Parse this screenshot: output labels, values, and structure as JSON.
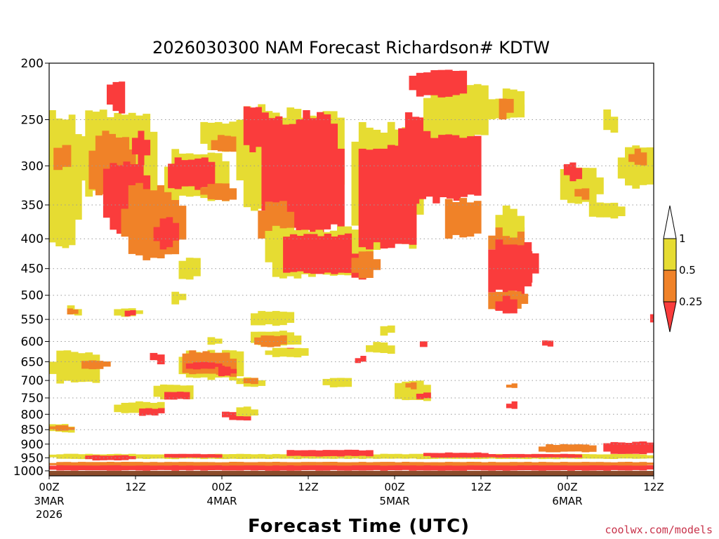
{
  "chart_data": {
    "type": "heatmap",
    "title": "2026030300 NAM Forecast Richardson# KDTW",
    "xlabel": "Forecast Time (UTC)",
    "ylabel": "",
    "credit": "coolwx.com/models",
    "x_unit": "forecast hour",
    "xlim": [
      0,
      84
    ],
    "y_unit": "hPa",
    "ylim": [
      1020,
      200
    ],
    "y_ticks": [
      {
        "value": 200,
        "label": "200"
      },
      {
        "value": 250,
        "label": "250"
      },
      {
        "value": 300,
        "label": "300"
      },
      {
        "value": 350,
        "label": "350"
      },
      {
        "value": 400,
        "label": "400"
      },
      {
        "value": 450,
        "label": "450"
      },
      {
        "value": 500,
        "label": "500"
      },
      {
        "value": 550,
        "label": "550"
      },
      {
        "value": 600,
        "label": "600"
      },
      {
        "value": 650,
        "label": "650"
      },
      {
        "value": 700,
        "label": "700"
      },
      {
        "value": 750,
        "label": "750"
      },
      {
        "value": 800,
        "label": "800"
      },
      {
        "value": 850,
        "label": "850"
      },
      {
        "value": 900,
        "label": "900"
      },
      {
        "value": 950,
        "label": "950"
      },
      {
        "value": 1000,
        "label": "1000"
      }
    ],
    "x_ticks": [
      {
        "hour": 0,
        "label": "00Z",
        "sub": "3MAR",
        "year": "2026"
      },
      {
        "hour": 12,
        "label": "12Z",
        "sub": "",
        "year": ""
      },
      {
        "hour": 24,
        "label": "00Z",
        "sub": "4MAR",
        "year": ""
      },
      {
        "hour": 36,
        "label": "12Z",
        "sub": "",
        "year": ""
      },
      {
        "hour": 48,
        "label": "00Z",
        "sub": "5MAR",
        "year": ""
      },
      {
        "hour": 60,
        "label": "12Z",
        "sub": "",
        "year": ""
      },
      {
        "hour": 72,
        "label": "00Z",
        "sub": "6MAR",
        "year": ""
      },
      {
        "hour": 84,
        "label": "12Z",
        "sub": "",
        "year": ""
      }
    ],
    "dotted_gridlines": true,
    "legend": {
      "placement": "right",
      "bins": [
        {
          "label": "1",
          "range": "> 1",
          "color": "#ffffff"
        },
        {
          "label": "0.5",
          "range": "0.5 – 1",
          "color": "#e6dc32"
        },
        {
          "label": "0.25",
          "range": "0.25 – 0.5",
          "color": "#f08228"
        },
        {
          "label": "",
          "range": "< 0.25",
          "color": "#fa3c3c"
        }
      ]
    },
    "colors": {
      "yellow": "#e6dc32",
      "orange": "#f08228",
      "red": "#fa3c3c",
      "ground": "#8b4c2b",
      "grid": "#9a9a9a"
    },
    "ground_top_hPa": 1000,
    "patches": [
      {
        "category": "yellow",
        "hour": [
          0,
          4.5
        ],
        "hPa": [
          240,
          420
        ]
      },
      {
        "category": "orange",
        "hour": [
          0.6,
          3
        ],
        "hPa": [
          275,
          305
        ]
      },
      {
        "category": "yellow",
        "hour": [
          0,
          7
        ],
        "hPa": [
          620,
          710
        ]
      },
      {
        "category": "orange",
        "hour": [
          4.5,
          8.5
        ],
        "hPa": [
          645,
          670
        ]
      },
      {
        "category": "yellow",
        "hour": [
          0,
          3.5
        ],
        "hPa": [
          830,
          860
        ]
      },
      {
        "category": "orange",
        "hour": [
          0,
          3.5
        ],
        "hPa": [
          835,
          855
        ]
      },
      {
        "category": "yellow",
        "hour": [
          4,
          15
        ],
        "hPa": [
          240,
          340
        ]
      },
      {
        "category": "orange",
        "hour": [
          5.5,
          12
        ],
        "hPa": [
          260,
          345
        ]
      },
      {
        "category": "red",
        "hour": [
          8,
          10.5
        ],
        "hPa": [
          215,
          245
        ]
      },
      {
        "category": "red",
        "hour": [
          7.5,
          14
        ],
        "hPa": [
          290,
          400
        ]
      },
      {
        "category": "orange",
        "hour": [
          10,
          19
        ],
        "hPa": [
          320,
          440
        ]
      },
      {
        "category": "red",
        "hour": [
          14.5,
          18
        ],
        "hPa": [
          365,
          420
        ]
      },
      {
        "category": "red",
        "hour": [
          11.5,
          14
        ],
        "hPa": [
          260,
          300
        ]
      },
      {
        "category": "yellow",
        "hour": [
          16,
          25
        ],
        "hPa": [
          280,
          345
        ]
      },
      {
        "category": "red",
        "hour": [
          16.5,
          23
        ],
        "hPa": [
          290,
          330
        ]
      },
      {
        "category": "orange",
        "hour": [
          21,
          26
        ],
        "hPa": [
          320,
          345
        ]
      },
      {
        "category": "yellow",
        "hour": [
          21,
          28
        ],
        "hPa": [
          250,
          285
        ]
      },
      {
        "category": "orange",
        "hour": [
          22.5,
          27
        ],
        "hPa": [
          265,
          285
        ]
      },
      {
        "category": "yellow",
        "hour": [
          26,
          41
        ],
        "hPa": [
          235,
          370
        ]
      },
      {
        "category": "red",
        "hour": [
          27,
          29.5
        ],
        "hPa": [
          235,
          285
        ]
      },
      {
        "category": "red",
        "hour": [
          29.5,
          41
        ],
        "hPa": [
          240,
          400
        ]
      },
      {
        "category": "orange",
        "hour": [
          29,
          34
        ],
        "hPa": [
          340,
          420
        ]
      },
      {
        "category": "yellow",
        "hour": [
          30,
          45
        ],
        "hPa": [
          380,
          470
        ]
      },
      {
        "category": "red",
        "hour": [
          32.5,
          42
        ],
        "hPa": [
          390,
          460
        ]
      },
      {
        "category": "red",
        "hour": [
          41,
          44
        ],
        "hPa": [
          420,
          470
        ]
      },
      {
        "category": "orange",
        "hour": [
          42,
          46
        ],
        "hPa": [
          420,
          470
        ]
      },
      {
        "category": "yellow",
        "hour": [
          42,
          52
        ],
        "hPa": [
          250,
          420
        ]
      },
      {
        "category": "red",
        "hour": [
          43,
          51
        ],
        "hPa": [
          275,
          420
        ]
      },
      {
        "category": "red",
        "hour": [
          48.5,
          60
        ],
        "hPa": [
          240,
          350
        ]
      },
      {
        "category": "orange",
        "hour": [
          55,
          60
        ],
        "hPa": [
          340,
          400
        ]
      },
      {
        "category": "yellow",
        "hour": [
          52,
          62
        ],
        "hPa": [
          215,
          270
        ]
      },
      {
        "category": "red",
        "hour": [
          50,
          58
        ],
        "hPa": [
          205,
          230
        ]
      },
      {
        "category": "yellow",
        "hour": [
          63,
          66
        ],
        "hPa": [
          220,
          245
        ]
      },
      {
        "category": "orange",
        "hour": [
          61,
          66
        ],
        "hPa": [
          375,
          440
        ]
      },
      {
        "category": "red",
        "hour": [
          61,
          67
        ],
        "hPa": [
          400,
          500
        ]
      },
      {
        "category": "red",
        "hour": [
          63.5,
          68
        ],
        "hPa": [
          420,
          480
        ]
      },
      {
        "category": "orange",
        "hour": [
          61,
          66.5
        ],
        "hPa": [
          490,
          530
        ]
      },
      {
        "category": "red",
        "hour": [
          62,
          65
        ],
        "hPa": [
          500,
          540
        ]
      },
      {
        "category": "yellow",
        "hour": [
          62,
          66
        ],
        "hPa": [
          350,
          400
        ]
      },
      {
        "category": "yellow",
        "hour": [
          71,
          77
        ],
        "hPa": [
          300,
          350
        ]
      },
      {
        "category": "red",
        "hour": [
          71.5,
          74
        ],
        "hPa": [
          295,
          320
        ]
      },
      {
        "category": "orange",
        "hour": [
          73,
          75
        ],
        "hPa": [
          325,
          345
        ]
      },
      {
        "category": "yellow",
        "hour": [
          75,
          80
        ],
        "hPa": [
          345,
          370
        ]
      },
      {
        "category": "yellow",
        "hour": [
          79,
          84
        ],
        "hPa": [
          275,
          330
        ]
      },
      {
        "category": "orange",
        "hour": [
          80.5,
          83
        ],
        "hPa": [
          280,
          300
        ]
      },
      {
        "category": "yellow",
        "hour": [
          77,
          79
        ],
        "hPa": [
          240,
          265
        ]
      },
      {
        "category": "yellow",
        "hour": [
          60,
          66
        ],
        "hPa": [
          230,
          250
        ]
      },
      {
        "category": "orange",
        "hour": [
          62.5,
          64.5
        ],
        "hPa": [
          230,
          250
        ]
      },
      {
        "category": "yellow",
        "hour": [
          18,
          21
        ],
        "hPa": [
          430,
          470
        ]
      },
      {
        "category": "yellow",
        "hour": [
          9,
          13
        ],
        "hPa": [
          525,
          545
        ]
      },
      {
        "category": "red",
        "hour": [
          10.5,
          12
        ],
        "hPa": [
          525,
          545
        ]
      },
      {
        "category": "yellow",
        "hour": [
          2.5,
          4.5
        ],
        "hPa": [
          520,
          545
        ]
      },
      {
        "category": "orange",
        "hour": [
          2.5,
          4
        ],
        "hPa": [
          525,
          545
        ]
      },
      {
        "category": "yellow",
        "hour": [
          17,
          19
        ],
        "hPa": [
          490,
          520
        ]
      },
      {
        "category": "yellow",
        "hour": [
          28,
          34
        ],
        "hPa": [
          530,
          565
        ]
      },
      {
        "category": "yellow",
        "hour": [
          28,
          35
        ],
        "hPa": [
          575,
          610
        ]
      },
      {
        "category": "orange",
        "hour": [
          28.5,
          33
        ],
        "hPa": [
          585,
          615
        ]
      },
      {
        "category": "red",
        "hour": [
          32,
          35
        ],
        "hPa": [
          615,
          635
        ]
      },
      {
        "category": "yellow",
        "hour": [
          30,
          36
        ],
        "hPa": [
          615,
          640
        ]
      },
      {
        "category": "yellow",
        "hour": [
          18,
          27
        ],
        "hPa": [
          620,
          700
        ]
      },
      {
        "category": "orange",
        "hour": [
          18.5,
          26
        ],
        "hPa": [
          620,
          690
        ]
      },
      {
        "category": "red",
        "hour": [
          19,
          24
        ],
        "hPa": [
          650,
          670
        ]
      },
      {
        "category": "red",
        "hour": [
          23.5,
          26
        ],
        "hPa": [
          660,
          690
        ]
      },
      {
        "category": "yellow",
        "hour": [
          22,
          24
        ],
        "hPa": [
          590,
          610
        ]
      },
      {
        "category": "red",
        "hour": [
          14,
          16
        ],
        "hPa": [
          620,
          660
        ]
      },
      {
        "category": "yellow",
        "hour": [
          26,
          30
        ],
        "hPa": [
          690,
          720
        ]
      },
      {
        "category": "orange",
        "hour": [
          27,
          29
        ],
        "hPa": [
          690,
          710
        ]
      },
      {
        "category": "yellow",
        "hour": [
          38,
          42
        ],
        "hPa": [
          690,
          720
        ]
      },
      {
        "category": "yellow",
        "hour": [
          14.5,
          20
        ],
        "hPa": [
          710,
          755
        ]
      },
      {
        "category": "red",
        "hour": [
          16,
          19.5
        ],
        "hPa": [
          730,
          755
        ]
      },
      {
        "category": "yellow",
        "hour": [
          9,
          16
        ],
        "hPa": [
          760,
          800
        ]
      },
      {
        "category": "red",
        "hour": [
          12.5,
          16
        ],
        "hPa": [
          780,
          805
        ]
      },
      {
        "category": "red",
        "hour": [
          24,
          28
        ],
        "hPa": [
          790,
          820
        ]
      },
      {
        "category": "yellow",
        "hour": [
          26,
          29
        ],
        "hPa": [
          775,
          810
        ]
      },
      {
        "category": "yellow",
        "hour": [
          44,
          48
        ],
        "hPa": [
          600,
          630
        ]
      },
      {
        "category": "yellow",
        "hour": [
          46,
          48
        ],
        "hPa": [
          560,
          590
        ]
      },
      {
        "category": "yellow",
        "hour": [
          48,
          53
        ],
        "hPa": [
          700,
          760
        ]
      },
      {
        "category": "orange",
        "hour": [
          49.5,
          51
        ],
        "hPa": [
          705,
          725
        ]
      },
      {
        "category": "red",
        "hour": [
          51,
          53
        ],
        "hPa": [
          730,
          760
        ]
      },
      {
        "category": "red",
        "hour": [
          68.5,
          70
        ],
        "hPa": [
          590,
          615
        ]
      },
      {
        "category": "red",
        "hour": [
          51.5,
          52.5
        ],
        "hPa": [
          595,
          615
        ]
      },
      {
        "category": "red",
        "hour": [
          42.5,
          44
        ],
        "hPa": [
          635,
          655
        ]
      },
      {
        "category": "orange",
        "hour": [
          63.5,
          65
        ],
        "hPa": [
          705,
          725
        ]
      },
      {
        "category": "red",
        "hour": [
          63.5,
          65
        ],
        "hPa": [
          760,
          785
        ]
      },
      {
        "category": "red",
        "hour": [
          83.5,
          84
        ],
        "hPa": [
          530,
          560
        ]
      }
    ],
    "near_surface_bands": [
      {
        "category": "red",
        "hour": [
          0,
          84
        ],
        "hPa": [
          975,
          1000
        ]
      },
      {
        "category": "orange",
        "hour": [
          0,
          84
        ],
        "hPa": [
          965,
          980
        ]
      },
      {
        "category": "yellow",
        "hour": [
          0,
          84
        ],
        "hPa": [
          935,
          955
        ]
      },
      {
        "category": "red",
        "hour": [
          5,
          12
        ],
        "hPa": [
          940,
          960
        ]
      },
      {
        "category": "red",
        "hour": [
          16,
          24
        ],
        "hPa": [
          935,
          950
        ]
      },
      {
        "category": "red",
        "hour": [
          33,
          45
        ],
        "hPa": [
          920,
          945
        ]
      },
      {
        "category": "red",
        "hour": [
          52,
          62
        ],
        "hPa": [
          930,
          950
        ]
      },
      {
        "category": "red",
        "hour": [
          62,
          74
        ],
        "hPa": [
          935,
          950
        ]
      },
      {
        "category": "orange",
        "hour": [
          68,
          76
        ],
        "hPa": [
          900,
          930
        ]
      },
      {
        "category": "red",
        "hour": [
          77,
          84
        ],
        "hPa": [
          890,
          940
        ]
      }
    ]
  }
}
